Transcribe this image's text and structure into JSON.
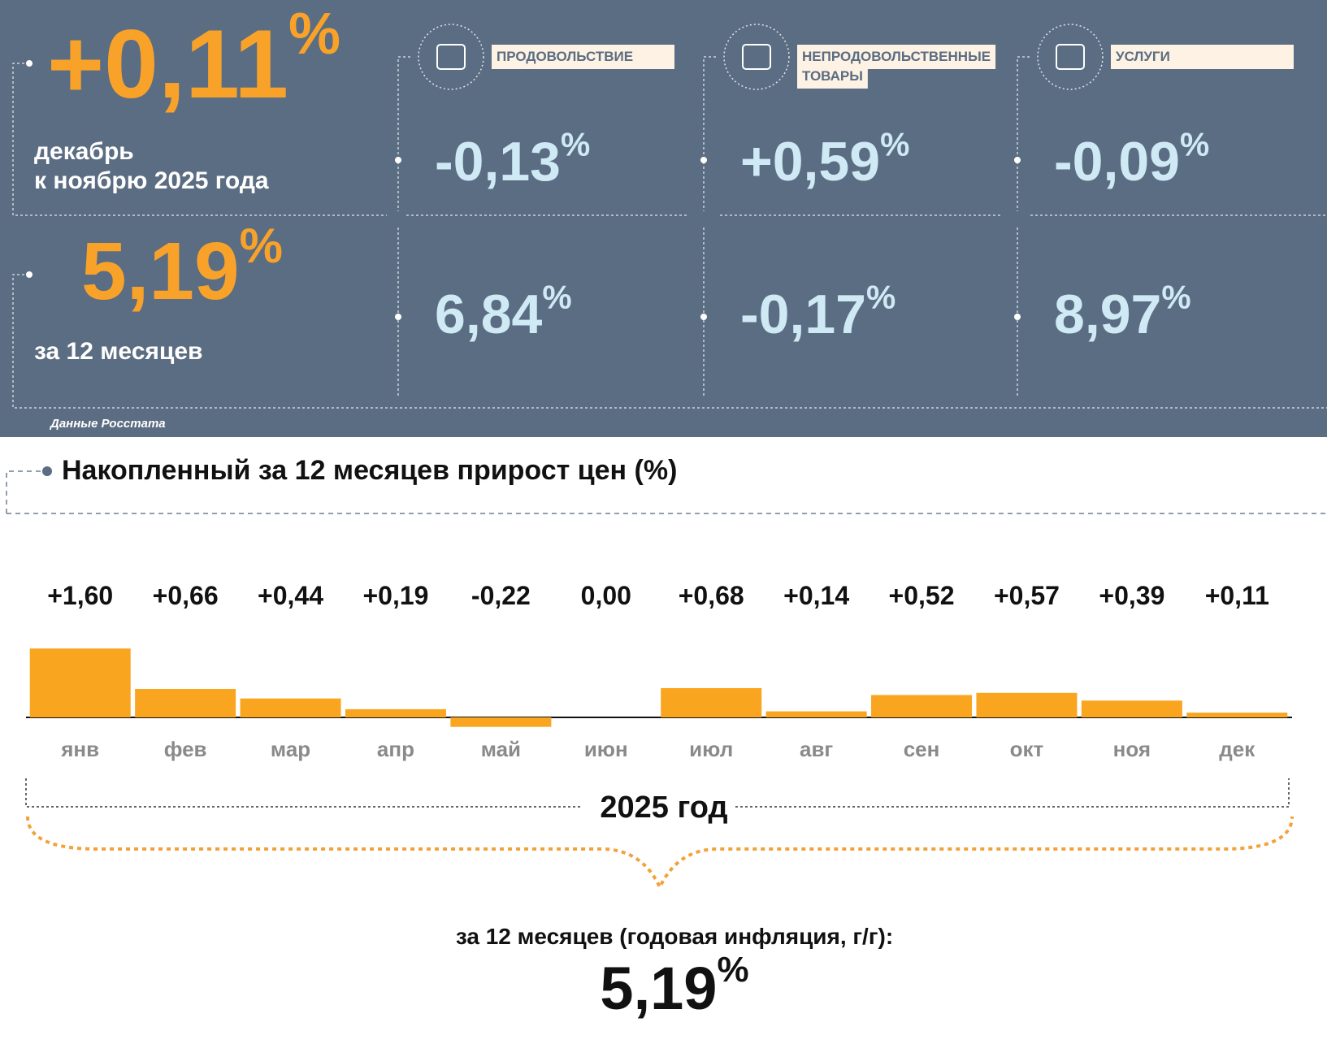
{
  "panel": {
    "monthly": {
      "value": "+0,11",
      "unit": "%",
      "caption": [
        "декабрь",
        "к ноябрю 2025 года"
      ]
    },
    "annual": {
      "value": "5,19",
      "unit": "%",
      "caption": [
        "за 12 месяцев"
      ]
    },
    "groups": [
      {
        "label": [
          "ПРОДОВОЛЬСТВИЕ"
        ],
        "monthly": {
          "value": "-0,13",
          "unit": "%"
        },
        "annual": {
          "value": "6,84",
          "unit": "%"
        }
      },
      {
        "label": [
          "НЕПРОДОВОЛЬСТВЕННЫЕ",
          "ТОВАРЫ"
        ],
        "monthly": {
          "value": "+0,59",
          "unit": "%"
        },
        "annual": {
          "value": "-0,17",
          "unit": "%"
        }
      },
      {
        "label": [
          "УСЛУГИ"
        ],
        "monthly": {
          "value": "-0,09",
          "unit": "%"
        },
        "annual": {
          "value": "8,97",
          "unit": "%"
        }
      }
    ],
    "source": "Данные Росстата"
  },
  "chart_data": {
    "type": "bar",
    "title": "Накопленный за 12 месяцев прирост цен (%)",
    "categories": [
      "янв",
      "фев",
      "мар",
      "апр",
      "май",
      "июн",
      "июл",
      "авг",
      "сен",
      "окт",
      "ноя",
      "дек"
    ],
    "values": [
      1.6,
      0.66,
      0.44,
      0.19,
      -0.22,
      0.0,
      0.68,
      0.14,
      0.52,
      0.57,
      0.39,
      0.11
    ],
    "value_labels": [
      "+1,60",
      "+0,66",
      "+0,44",
      "+0,19",
      "-0,22",
      "0,00",
      "+0,68",
      "+0,14",
      "+0,52",
      "+0,57",
      "+0,39",
      "+0,11"
    ],
    "color": "#f9a51f",
    "xlabel": "2025 год"
  },
  "summary": {
    "caption": "за 12 месяцев (годовая инфляция, г/г):",
    "value": "5,19",
    "unit": "%"
  }
}
